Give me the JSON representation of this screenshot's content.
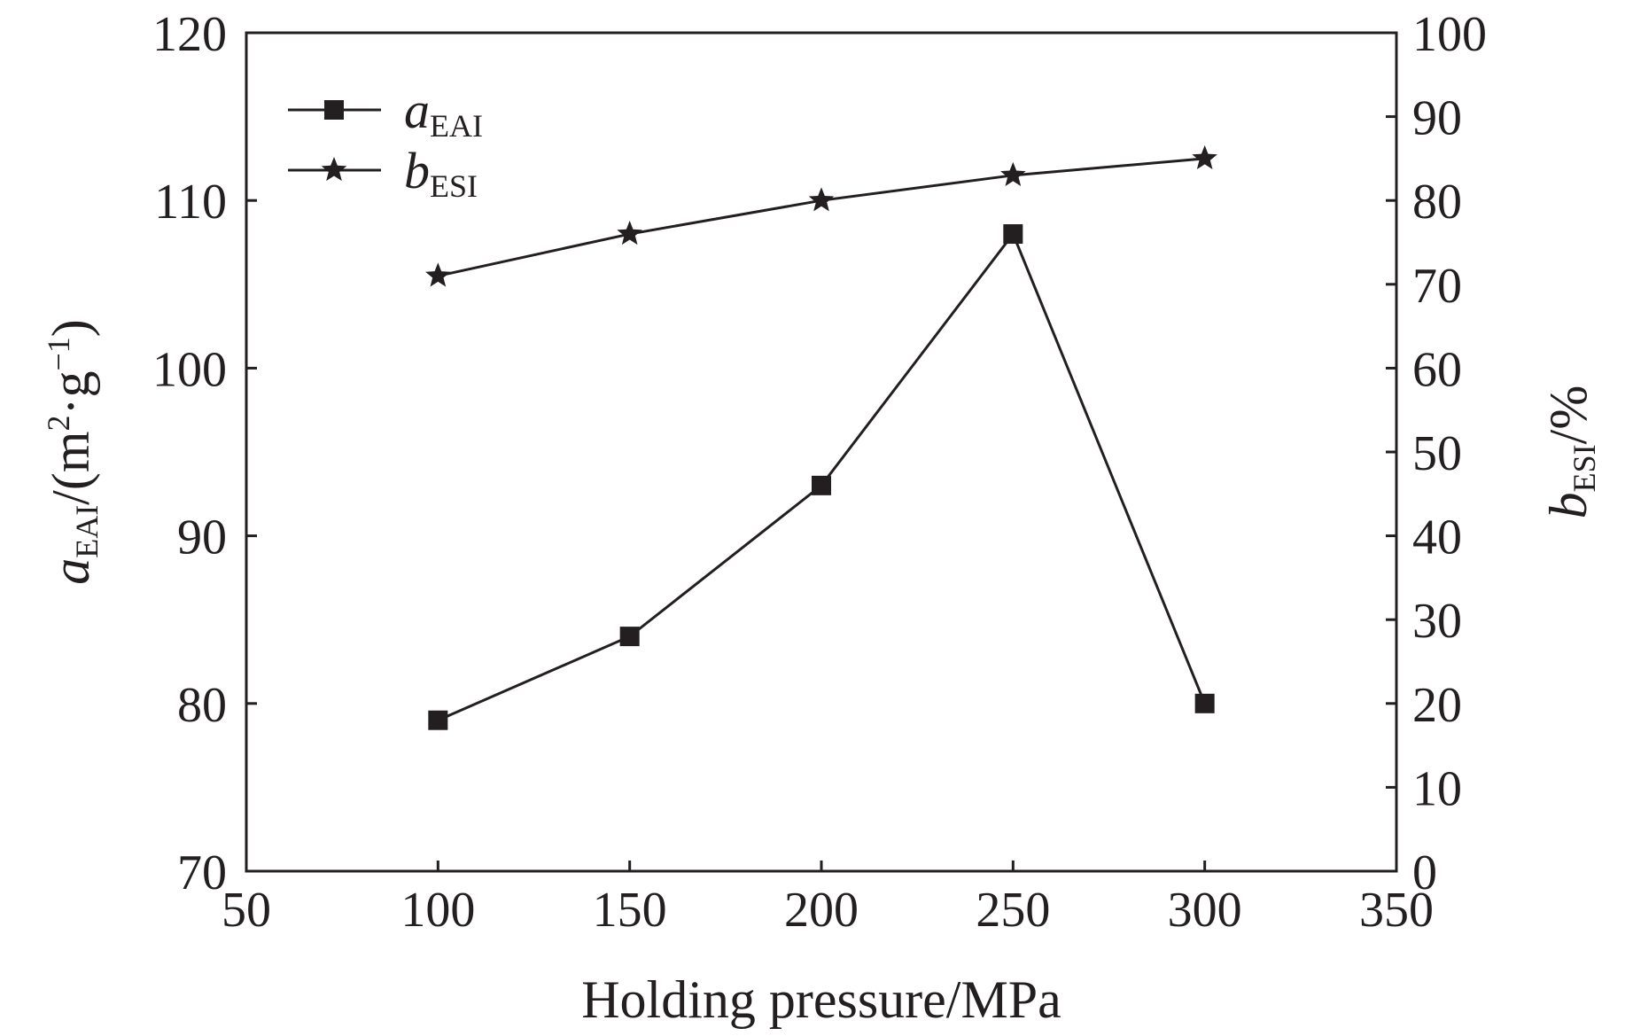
{
  "chart_data": {
    "type": "line",
    "title": "",
    "xlabel": "Holding pressure/MPa",
    "ylabel_left": {
      "symbol": "a",
      "subscript": "EAI",
      "unit_open": "/(m",
      "unit_sup1": "2",
      "unit_mid": "·g",
      "unit_sup2": "−1",
      "unit_close": ")"
    },
    "ylabel_right": {
      "symbol": "b",
      "subscript": "ESI",
      "unit": "/%"
    },
    "xlim": [
      50,
      350
    ],
    "xticks": [
      50,
      100,
      150,
      200,
      250,
      300,
      350
    ],
    "ylim_left": [
      70,
      120
    ],
    "yticks_left": [
      70,
      80,
      90,
      100,
      110,
      120
    ],
    "ylim_right": [
      0,
      100
    ],
    "yticks_right": [
      0,
      10,
      20,
      30,
      40,
      50,
      60,
      70,
      80,
      90,
      100
    ],
    "x": [
      100,
      150,
      200,
      250,
      300
    ],
    "series": [
      {
        "name_symbol": "a",
        "name_subscript": "EAI",
        "axis": "left",
        "marker": "square",
        "values": [
          79,
          84,
          93,
          108,
          80
        ]
      },
      {
        "name_symbol": "b",
        "name_subscript": "ESI",
        "axis": "right",
        "marker": "star",
        "values": [
          71,
          76,
          80,
          83,
          85
        ]
      }
    ],
    "legend_position": "top-left",
    "grid": false,
    "colors": {
      "line": "#231f20",
      "marker": "#231f20",
      "axis": "#231f20",
      "background": "#ffffff"
    }
  }
}
